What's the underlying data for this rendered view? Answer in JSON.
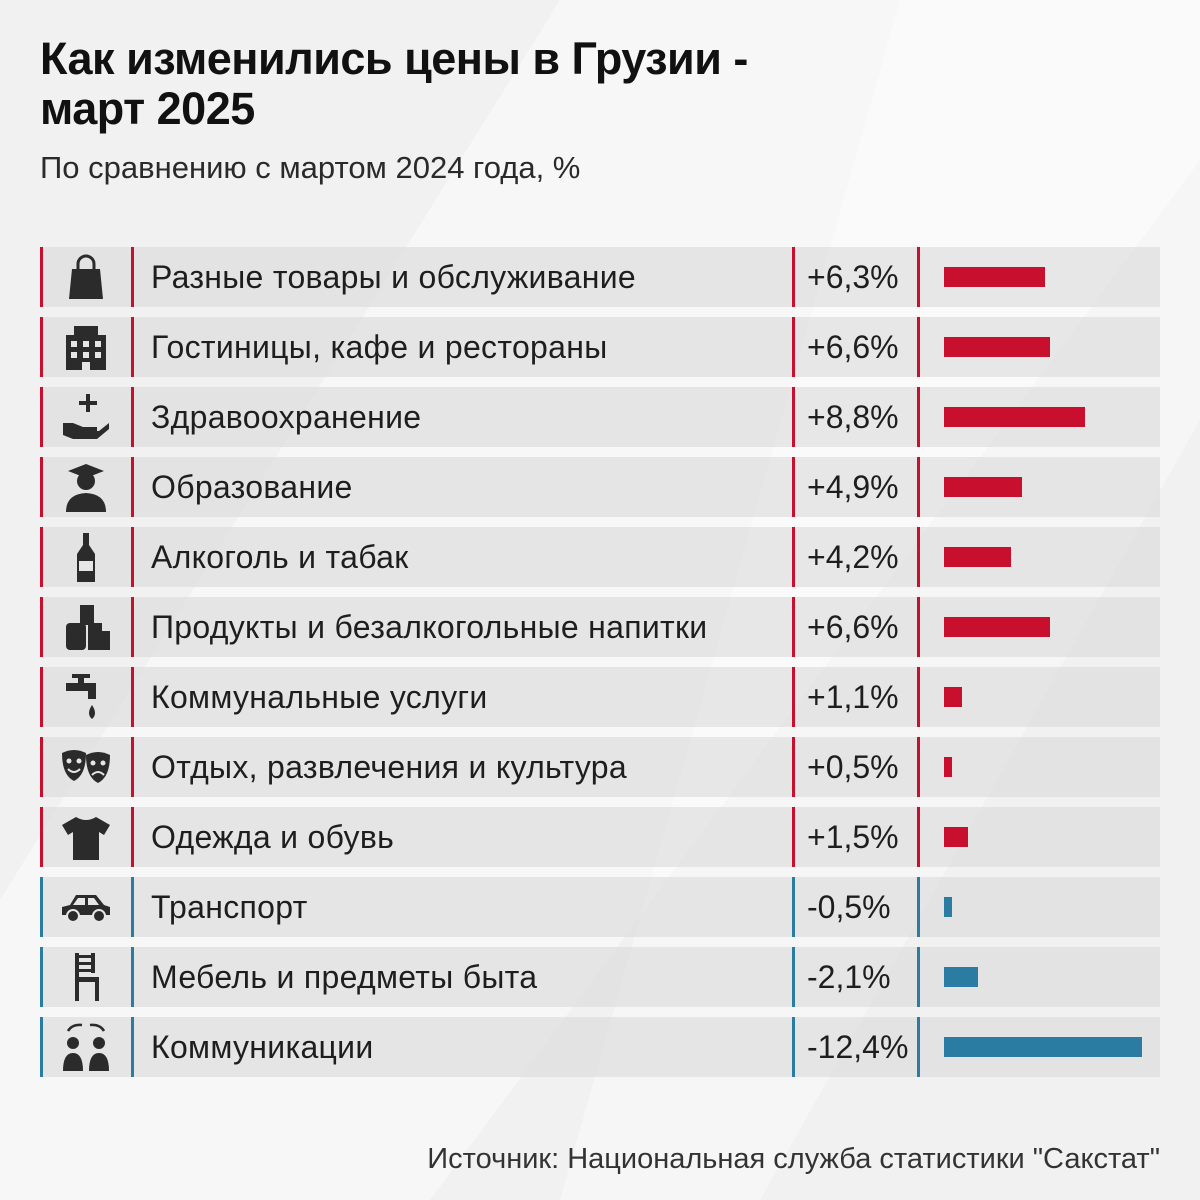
{
  "title": "Как изменились цены в Грузии - март 2025",
  "subtitle": "По сравнению с мартом 2024 года, %",
  "source": "Источник: Национальная служба статистики \"Сакстат\"",
  "colors": {
    "positive": "#c8102e",
    "negative": "#2a7ca3",
    "background": "#f1f1f1"
  },
  "chart_data": {
    "type": "bar",
    "orientation": "horizontal",
    "title": "Как изменились цены в Грузии - март 2025",
    "subtitle": "По сравнению с мартом 2024 года, %",
    "xlabel": "",
    "ylabel": "",
    "categories": [
      "Разные товары и обслуживание",
      "Гостиницы, кафе и рестораны",
      "Здравоохранение",
      "Образование",
      "Алкоголь и табак",
      "Продукты и безалкогольные напитки",
      "Коммунальные услуги",
      "Отдых, развлечения и культура",
      "Одежда и обувь",
      "Транспорт",
      "Мебель и предметы быта",
      "Коммуникации"
    ],
    "values": [
      6.3,
      6.6,
      8.8,
      4.9,
      4.2,
      6.6,
      1.1,
      0.5,
      1.5,
      -0.5,
      -2.1,
      -12.4
    ],
    "value_labels": [
      "+6,3%",
      "+6,6%",
      "+8,8%",
      "+4,9%",
      "+4,2%",
      "+6,6%",
      "+1,1%",
      "+0,5%",
      "+1,5%",
      "-0,5%",
      "-2,1%",
      "-12,4%"
    ],
    "icons": [
      "shopping-bag-icon",
      "hotel-building-icon",
      "health-care-icon",
      "graduate-icon",
      "bottle-icon",
      "groceries-icon",
      "water-tap-icon",
      "theater-masks-icon",
      "tshirt-icon",
      "car-icon",
      "chair-icon",
      "people-communication-icon"
    ],
    "legend": "none",
    "grid": false
  }
}
